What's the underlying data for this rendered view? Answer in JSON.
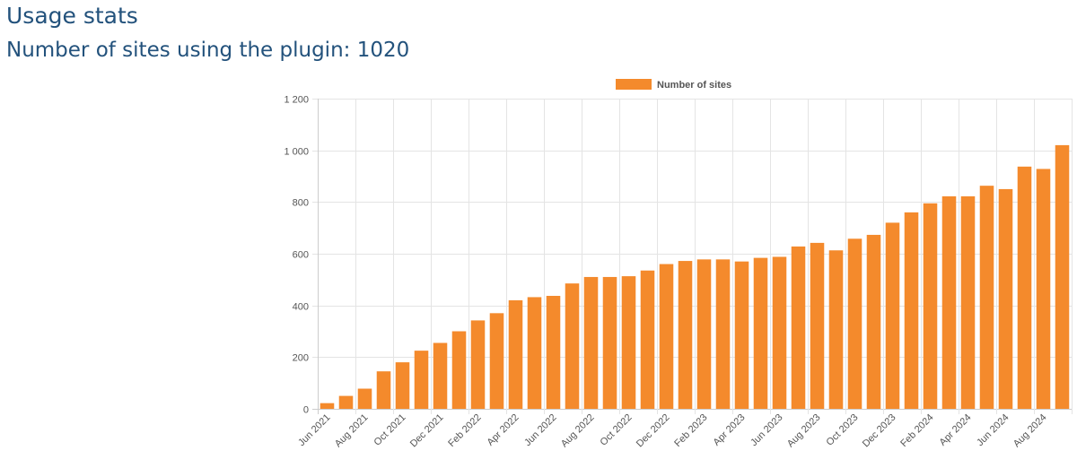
{
  "page": {
    "title": "Usage stats",
    "subtitle_label": "Number of sites using the plugin:",
    "subtitle_value": "1020"
  },
  "colors": {
    "bar": "#f48a2c",
    "grid": "#e4e4e4",
    "axis": "#cccccc",
    "title": "#23527c"
  },
  "chart_data": {
    "type": "bar",
    "title": "",
    "xlabel": "",
    "ylabel": "",
    "ylim": [
      0,
      1200
    ],
    "yticks": [
      0,
      200,
      400,
      600,
      800,
      1000,
      1200
    ],
    "ytick_labels": [
      "0",
      "200",
      "400",
      "600",
      "800",
      "1 000",
      "1 200"
    ],
    "grid": true,
    "legend": "top-center",
    "categories": [
      "Jun 2021",
      "Jul 2021",
      "Aug 2021",
      "Sep 2021",
      "Oct 2021",
      "Nov 2021",
      "Dec 2021",
      "Jan 2022",
      "Feb 2022",
      "Mar 2022",
      "Apr 2022",
      "May 2022",
      "Jun 2022",
      "Jul 2022",
      "Aug 2022",
      "Sep 2022",
      "Oct 2022",
      "Nov 2022",
      "Dec 2022",
      "Jan 2023",
      "Feb 2023",
      "Mar 2023",
      "Apr 2023",
      "May 2023",
      "Jun 2023",
      "Jul 2023",
      "Aug 2023",
      "Sep 2023",
      "Oct 2023",
      "Nov 2023",
      "Dec 2023",
      "Jan 2024",
      "Feb 2024",
      "Mar 2024",
      "Apr 2024",
      "May 2024",
      "Jun 2024",
      "Jul 2024",
      "Aug 2024",
      "Sep 2024"
    ],
    "x_tick_labels": [
      "Jun 2021",
      "Aug 2021",
      "Oct 2021",
      "Dec 2021",
      "Feb 2022",
      "Apr 2022",
      "Jun 2022",
      "Aug 2022",
      "Oct 2022",
      "Dec 2022",
      "Feb 2023",
      "Apr 2023",
      "Jun 2023",
      "Aug 2023",
      "Oct 2023",
      "Dec 2023",
      "Feb 2024",
      "Apr 2024",
      "Jun 2024",
      "Aug 2024"
    ],
    "series": [
      {
        "name": "Number of sites",
        "values": [
          22,
          50,
          78,
          145,
          180,
          225,
          255,
          300,
          342,
          370,
          420,
          432,
          437,
          485,
          510,
          510,
          513,
          535,
          560,
          572,
          578,
          578,
          570,
          584,
          588,
          628,
          642,
          613,
          658,
          673,
          720,
          760,
          795,
          822,
          822,
          863,
          850,
          937,
          928,
          1020
        ]
      }
    ]
  }
}
